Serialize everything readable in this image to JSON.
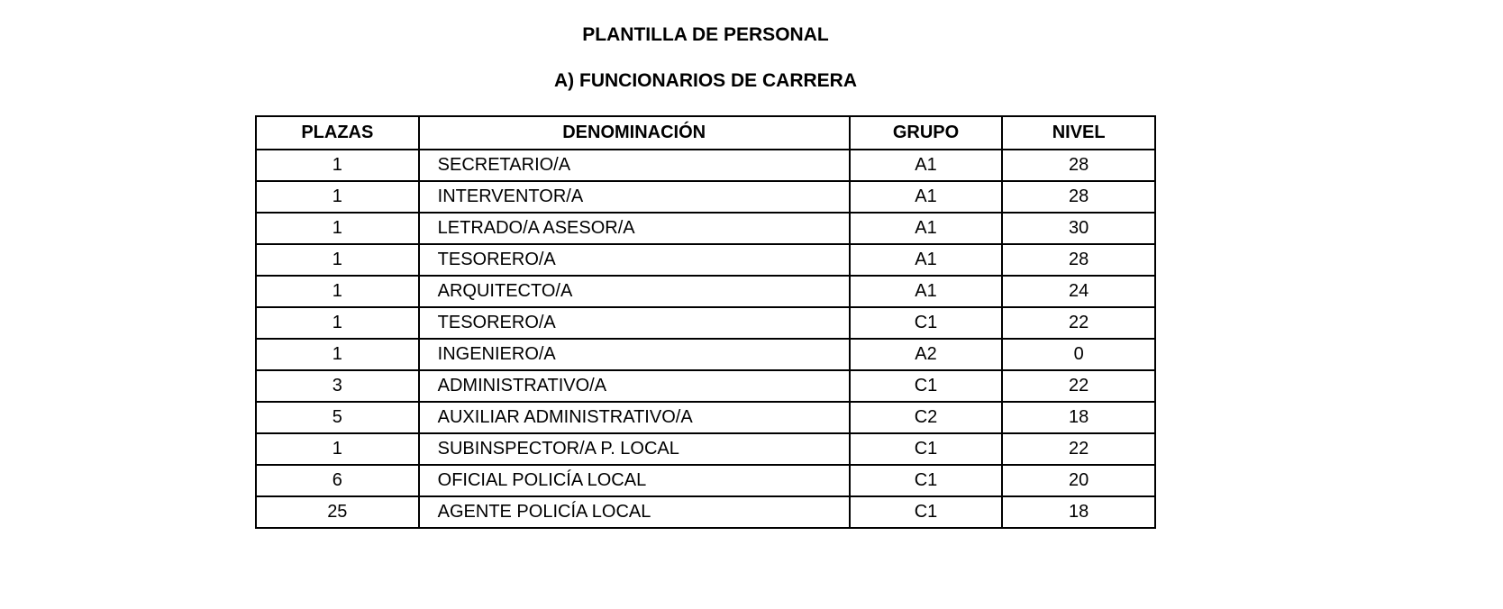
{
  "document": {
    "title": "PLANTILLA DE PERSONAL",
    "subtitle": "A) FUNCIONARIOS DE CARRERA",
    "table": {
      "headers": [
        "PLAZAS",
        "DENOMINACIÓN",
        "GRUPO",
        "NIVEL"
      ],
      "rows": [
        [
          "1",
          "SECRETARIO/A",
          "A1",
          "28"
        ],
        [
          "1",
          "INTERVENTOR/A",
          "A1",
          "28"
        ],
        [
          "1",
          "LETRADO/A ASESOR/A",
          "A1",
          "30"
        ],
        [
          "1",
          "TESORERO/A",
          "A1",
          "28"
        ],
        [
          "1",
          "ARQUITECTO/A",
          "A1",
          "24"
        ],
        [
          "1",
          "TESORERO/A",
          "C1",
          "22"
        ],
        [
          "1",
          "INGENIERO/A",
          "A2",
          "0"
        ],
        [
          "3",
          "ADMINISTRATIVO/A",
          "C1",
          "22"
        ],
        [
          "5",
          "AUXILIAR ADMINISTRATIVO/A",
          "C2",
          "18"
        ],
        [
          "1",
          "SUBINSPECTOR/A P. LOCAL",
          "C1",
          "22"
        ],
        [
          "6",
          "OFICIAL POLICÍA LOCAL",
          "C1",
          "20"
        ],
        [
          "25",
          "AGENTE POLICÍA LOCAL",
          "C1",
          "18"
        ]
      ]
    }
  }
}
